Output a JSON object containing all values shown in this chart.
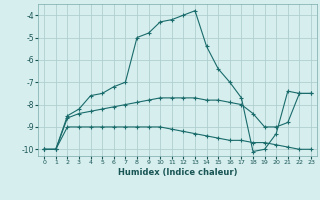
{
  "xlabel": "Humidex (Indice chaleur)",
  "background_color": "#d6eeee",
  "grid_color": "#b0cfcf",
  "line_color": "#1a6b6b",
  "xlim": [
    -0.5,
    23.5
  ],
  "ylim": [
    -10.3,
    -3.5
  ],
  "yticks": [
    -10,
    -9,
    -8,
    -7,
    -6,
    -5,
    -4
  ],
  "xticks": [
    0,
    1,
    2,
    3,
    4,
    5,
    6,
    7,
    8,
    9,
    10,
    11,
    12,
    13,
    14,
    15,
    16,
    17,
    18,
    19,
    20,
    21,
    22,
    23
  ],
  "series1_x": [
    0,
    1,
    2,
    3,
    4,
    5,
    6,
    7,
    8,
    9,
    10,
    11,
    12,
    13,
    14,
    15,
    16,
    17,
    18,
    19,
    20,
    21,
    22,
    23
  ],
  "series1_y": [
    -10.0,
    -10.0,
    -8.5,
    -8.2,
    -7.6,
    -7.5,
    -7.2,
    -7.0,
    -5.0,
    -4.8,
    -4.3,
    -4.2,
    -4.0,
    -3.8,
    -5.4,
    -6.4,
    -7.0,
    -7.7,
    -10.1,
    -10.0,
    -9.3,
    -7.4,
    -7.5,
    -7.5
  ],
  "series2_x": [
    0,
    1,
    2,
    3,
    4,
    5,
    6,
    7,
    8,
    9,
    10,
    11,
    12,
    13,
    14,
    15,
    16,
    17,
    18,
    19,
    20,
    21,
    22,
    23
  ],
  "series2_y": [
    -10.0,
    -10.0,
    -8.6,
    -8.4,
    -8.3,
    -8.2,
    -8.1,
    -8.0,
    -7.9,
    -7.8,
    -7.7,
    -7.7,
    -7.7,
    -7.7,
    -7.8,
    -7.8,
    -7.9,
    -8.0,
    -8.4,
    -9.0,
    -9.0,
    -8.8,
    -7.5,
    -7.5
  ],
  "series3_x": [
    0,
    1,
    2,
    3,
    4,
    5,
    6,
    7,
    8,
    9,
    10,
    11,
    12,
    13,
    14,
    15,
    16,
    17,
    18,
    19,
    20,
    21,
    22,
    23
  ],
  "series3_y": [
    -10.0,
    -10.0,
    -9.0,
    -9.0,
    -9.0,
    -9.0,
    -9.0,
    -9.0,
    -9.0,
    -9.0,
    -9.0,
    -9.1,
    -9.2,
    -9.3,
    -9.4,
    -9.5,
    -9.6,
    -9.6,
    -9.7,
    -9.7,
    -9.8,
    -9.9,
    -10.0,
    -10.0
  ]
}
